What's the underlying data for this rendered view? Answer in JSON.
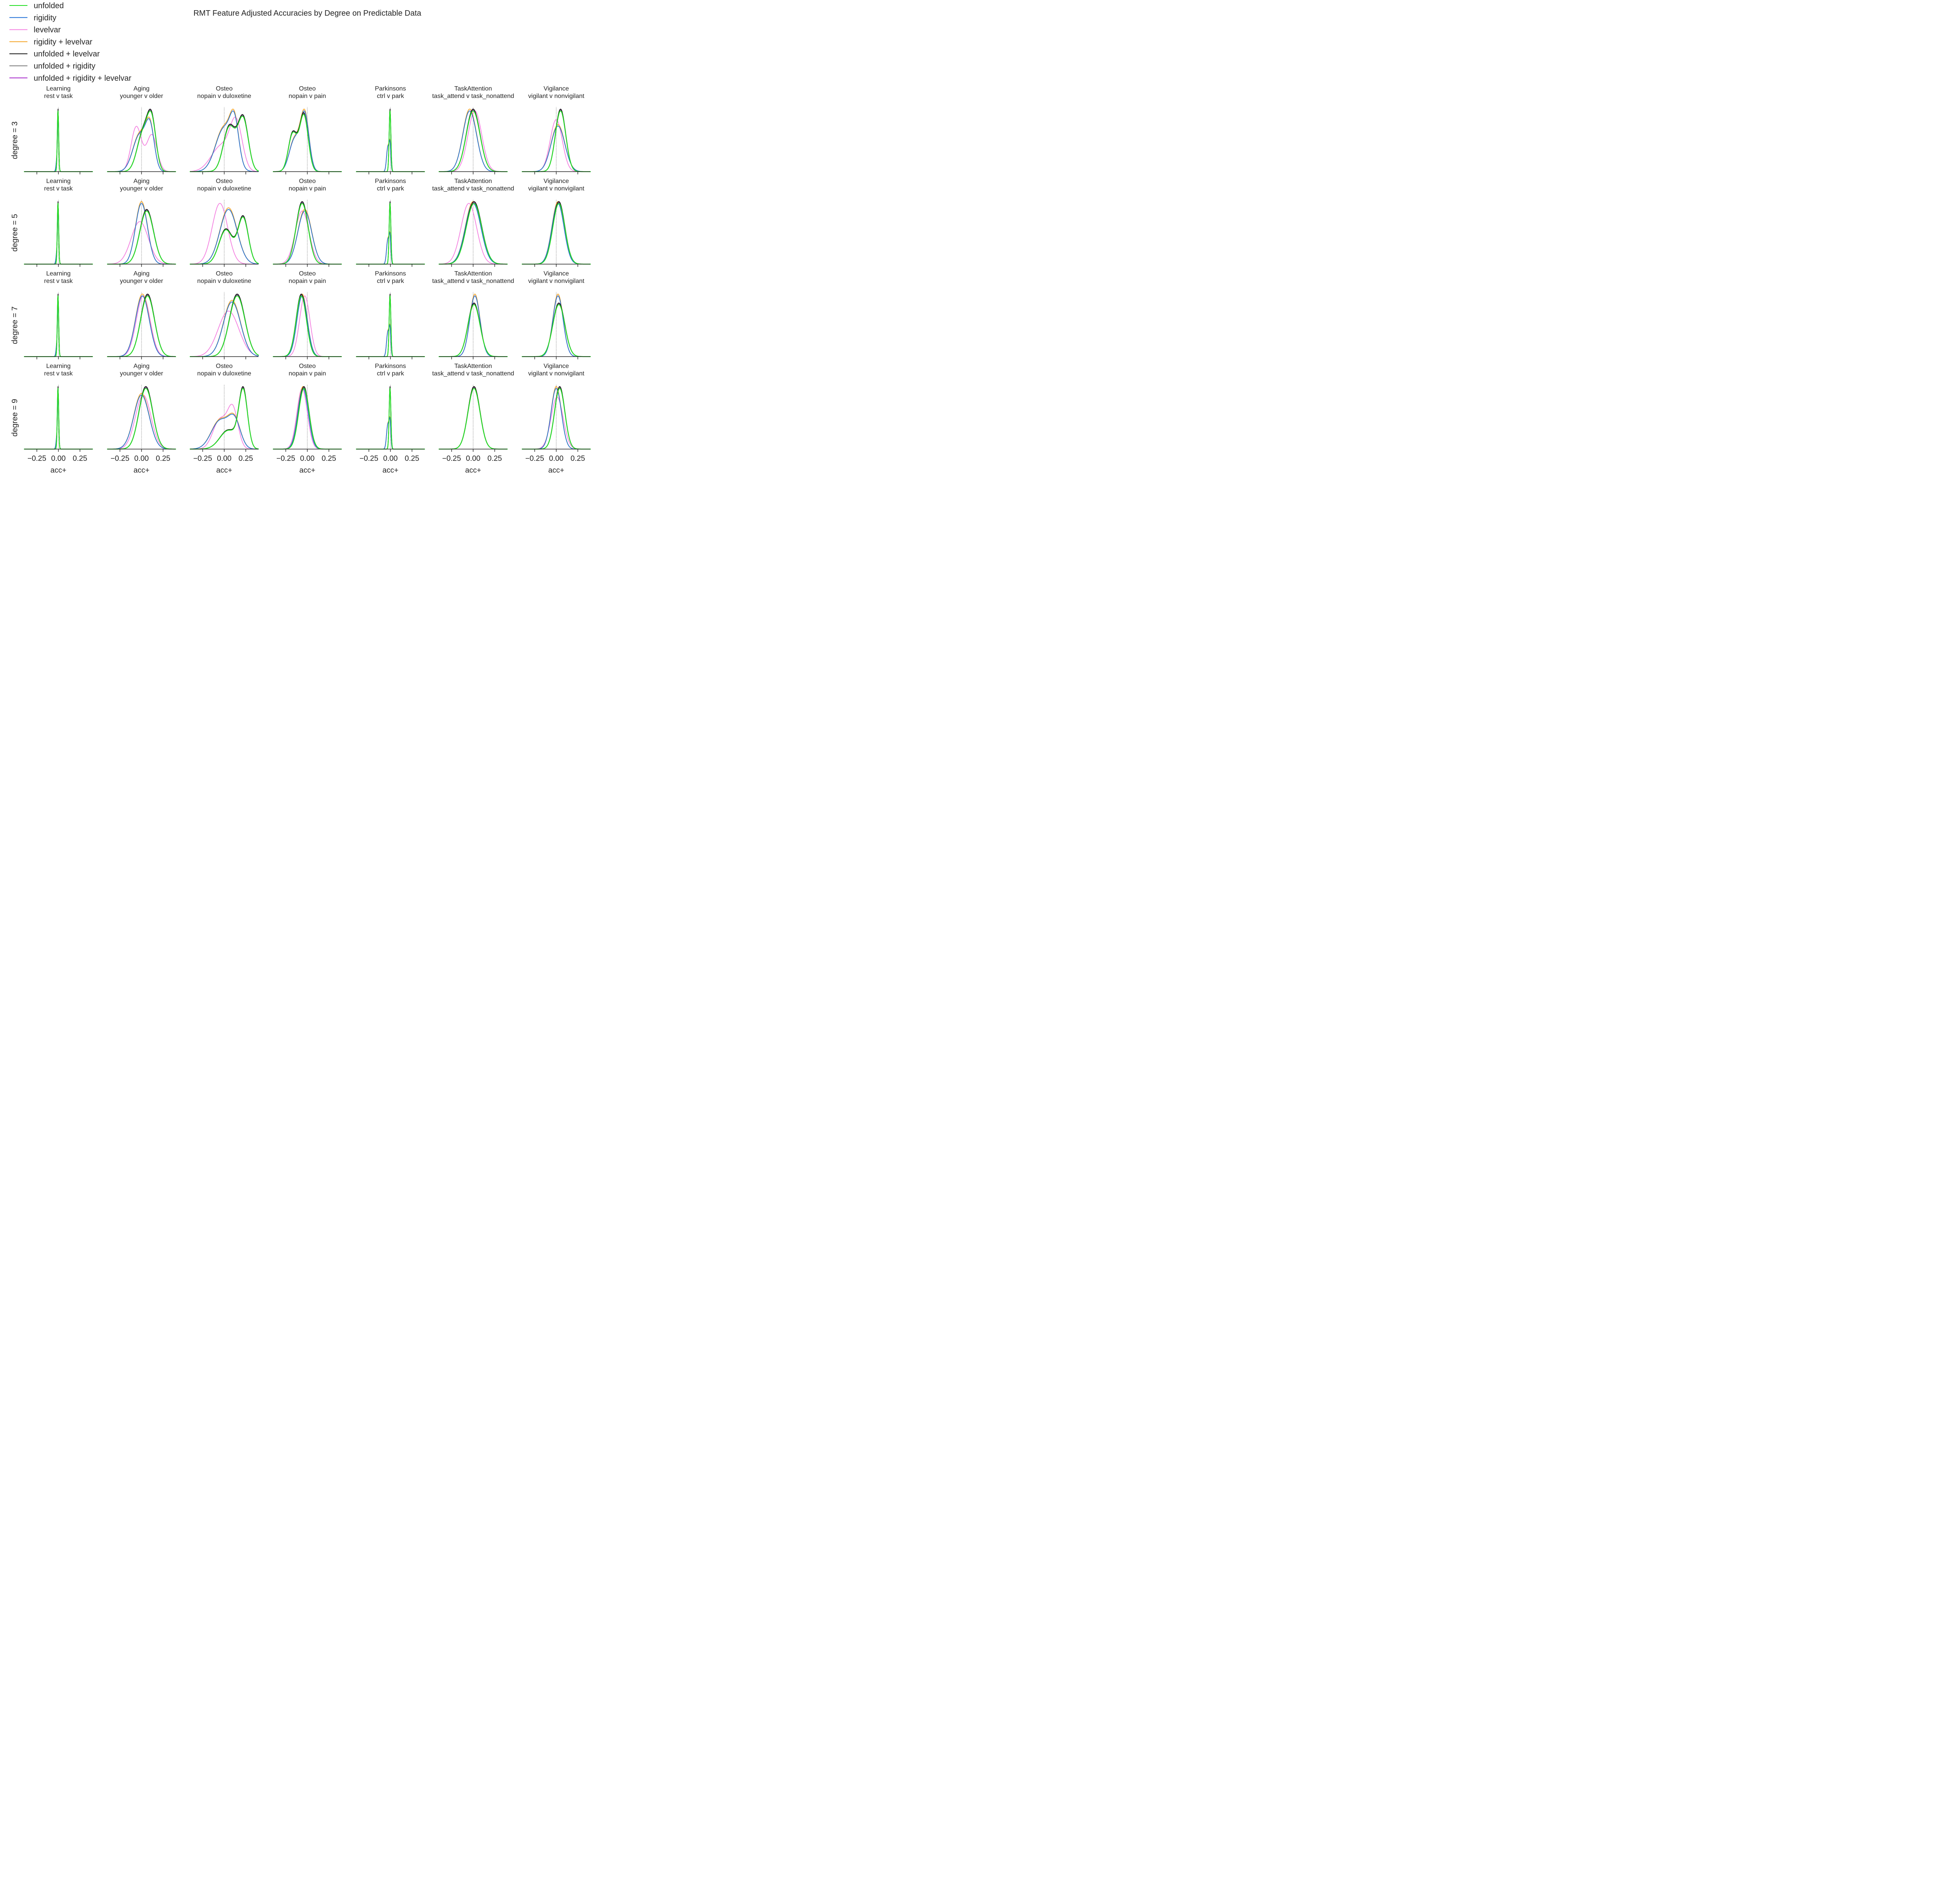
{
  "chart_data": {
    "type": "density",
    "title": "RMT Feature Adjusted Accuracies by Degree on Predictable Data",
    "xlabel": "acc+",
    "xlim": [
      -0.4,
      0.4
    ],
    "xticks": [
      -0.25,
      0.0,
      0.25
    ],
    "xtick_labels": [
      "−0.25",
      "0.00",
      "0.25"
    ],
    "reference_line_x": 0.0,
    "legend_position": "top-left",
    "legend": [
      {
        "name": "unfolded",
        "color": "#22dd22"
      },
      {
        "name": "rigidity",
        "color": "#1f6fd6"
      },
      {
        "name": "levelvar",
        "color": "#f47fe0"
      },
      {
        "name": "rigidity + levelvar",
        "color": "#f4a223"
      },
      {
        "name": "unfolded + levelvar",
        "color": "#111111"
      },
      {
        "name": "unfolded + rigidity",
        "color": "#7a7a7a"
      },
      {
        "name": "unfolded + rigidity + levelvar",
        "color": "#a323c8"
      }
    ],
    "row_labels": [
      "degree = 3",
      "degree = 5",
      "degree = 7",
      "degree = 9"
    ],
    "columns": [
      {
        "dataset": "Learning",
        "comparison": "rest v task"
      },
      {
        "dataset": "Aging",
        "comparison": "younger v older"
      },
      {
        "dataset": "Osteo",
        "comparison": "nopain v duloxetine"
      },
      {
        "dataset": "Osteo",
        "comparison": "nopain v pain"
      },
      {
        "dataset": "Parkinsons",
        "comparison": "ctrl v park"
      },
      {
        "dataset": "TaskAttention",
        "comparison": "task_attend v task_nonattend"
      },
      {
        "dataset": "Vigilance",
        "comparison": "vigilant v nonvigilant"
      }
    ],
    "panels": [
      [
        {
          "groups": {
            "U": [
              [
                -0.005,
                0.008,
                1.0
              ]
            ],
            "R": [
              [
                -0.01,
                0.012,
                0.5
              ],
              [
                -0.002,
                0.006,
                0.5
              ]
            ],
            "L": [
              [
                -0.01,
                0.012,
                0.5
              ],
              [
                -0.002,
                0.006,
                0.5
              ]
            ]
          }
        },
        {
          "groups": {
            "U": [
              [
                0.02,
                0.07,
                0.55
              ],
              [
                0.12,
                0.05,
                0.45
              ]
            ],
            "R": [
              [
                -0.02,
                0.08,
                0.6
              ],
              [
                0.1,
                0.05,
                0.4
              ]
            ],
            "L": [
              [
                -0.06,
                0.06,
                0.55
              ],
              [
                0.12,
                0.06,
                0.45
              ]
            ]
          }
        },
        {
          "groups": {
            "U": [
              [
                0.06,
                0.07,
                0.5
              ],
              [
                0.22,
                0.06,
                0.5
              ]
            ],
            "R": [
              [
                0.0,
                0.1,
                0.7
              ],
              [
                0.12,
                0.05,
                0.3
              ]
            ],
            "L": [
              [
                -0.03,
                0.12,
                0.5
              ],
              [
                0.14,
                0.07,
                0.5
              ]
            ]
          }
        },
        {
          "groups": {
            "U": [
              [
                -0.17,
                0.05,
                0.4
              ],
              [
                -0.04,
                0.05,
                0.6
              ]
            ],
            "R": [
              [
                -0.15,
                0.06,
                0.4
              ],
              [
                -0.03,
                0.05,
                0.6
              ]
            ],
            "L": [
              [
                -0.15,
                0.06,
                0.4
              ],
              [
                -0.03,
                0.05,
                0.6
              ]
            ]
          }
        },
        {
          "groups": {
            "U": [
              [
                -0.005,
                0.01,
                1.0
              ]
            ],
            "R": [
              [
                -0.03,
                0.015,
                0.6
              ],
              [
                -0.005,
                0.01,
                0.4
              ]
            ],
            "L": [
              [
                -0.03,
                0.015,
                0.6
              ],
              [
                -0.005,
                0.01,
                0.4
              ]
            ]
          }
        },
        {
          "groups": {
            "U": [
              [
                0.0,
                0.08,
                1.0
              ]
            ],
            "R": [
              [
                -0.04,
                0.08,
                1.0
              ]
            ],
            "L": [
              [
                0.02,
                0.08,
                1.0
              ]
            ]
          }
        },
        {
          "groups": {
            "U": [
              [
                0.05,
                0.06,
                1.0
              ]
            ],
            "R": [
              [
                0.02,
                0.08,
                1.0
              ]
            ],
            "L": [
              [
                0.0,
                0.07,
                1.0
              ]
            ]
          }
        }
      ],
      [
        {
          "groups": {
            "U": [
              [
                -0.005,
                0.008,
                1.0
              ]
            ],
            "R": [
              [
                -0.01,
                0.012,
                0.5
              ],
              [
                -0.002,
                0.006,
                0.5
              ]
            ],
            "L": [
              [
                -0.01,
                0.012,
                0.5
              ],
              [
                -0.002,
                0.006,
                0.5
              ]
            ]
          }
        },
        {
          "groups": {
            "U": [
              [
                0.06,
                0.08,
                1.0
              ]
            ],
            "R": [
              [
                0.0,
                0.07,
                1.0
              ]
            ],
            "L": [
              [
                -0.02,
                0.1,
                1.0
              ]
            ]
          }
        },
        {
          "groups": {
            "U": [
              [
                0.02,
                0.08,
                0.5
              ],
              [
                0.22,
                0.06,
                0.5
              ]
            ],
            "R": [
              [
                0.05,
                0.1,
                1.0
              ]
            ],
            "L": [
              [
                -0.05,
                0.09,
                1.0
              ]
            ]
          }
        },
        {
          "groups": {
            "U": [
              [
                -0.06,
                0.07,
                1.0
              ]
            ],
            "R": [
              [
                -0.03,
                0.08,
                1.0
              ]
            ],
            "L": [
              [
                -0.06,
                0.08,
                1.0
              ]
            ]
          }
        },
        {
          "groups": {
            "U": [
              [
                -0.005,
                0.01,
                1.0
              ]
            ],
            "R": [
              [
                -0.03,
                0.015,
                0.6
              ],
              [
                -0.005,
                0.01,
                0.4
              ]
            ],
            "L": [
              [
                -0.03,
                0.015,
                0.6
              ],
              [
                -0.005,
                0.01,
                0.4
              ]
            ]
          }
        },
        {
          "groups": {
            "U": [
              [
                0.01,
                0.09,
                1.0
              ]
            ],
            "R": [
              [
                0.0,
                0.09,
                1.0
              ]
            ],
            "L": [
              [
                -0.05,
                0.09,
                1.0
              ]
            ]
          }
        },
        {
          "groups": {
            "U": [
              [
                0.03,
                0.07,
                1.0
              ]
            ],
            "R": [
              [
                0.02,
                0.07,
                1.0
              ]
            ],
            "L": [
              [
                0.03,
                0.07,
                1.0
              ]
            ]
          }
        }
      ],
      [
        {
          "groups": {
            "U": [
              [
                -0.005,
                0.008,
                1.0
              ]
            ],
            "R": [
              [
                -0.01,
                0.012,
                0.5
              ],
              [
                -0.002,
                0.006,
                0.5
              ]
            ],
            "L": [
              [
                -0.01,
                0.012,
                0.5
              ],
              [
                -0.002,
                0.006,
                0.5
              ]
            ]
          }
        },
        {
          "groups": {
            "U": [
              [
                0.07,
                0.08,
                1.0
              ]
            ],
            "R": [
              [
                0.01,
                0.08,
                1.0
              ]
            ],
            "L": [
              [
                0.02,
                0.08,
                1.0
              ]
            ]
          }
        },
        {
          "groups": {
            "U": [
              [
                0.15,
                0.09,
                1.0
              ]
            ],
            "R": [
              [
                0.09,
                0.1,
                1.0
              ]
            ],
            "L": [
              [
                0.05,
                0.12,
                1.0
              ]
            ]
          }
        },
        {
          "groups": {
            "U": [
              [
                -0.07,
                0.06,
                1.0
              ]
            ],
            "R": [
              [
                -0.06,
                0.06,
                1.0
              ]
            ],
            "L": [
              [
                -0.03,
                0.06,
                1.0
              ]
            ]
          }
        },
        {
          "groups": {
            "U": [
              [
                -0.005,
                0.01,
                1.0
              ]
            ],
            "R": [
              [
                -0.03,
                0.015,
                0.6
              ],
              [
                -0.005,
                0.01,
                0.4
              ]
            ],
            "L": [
              [
                -0.03,
                0.015,
                0.6
              ],
              [
                -0.005,
                0.01,
                0.4
              ]
            ]
          }
        },
        {
          "groups": {
            "U": [
              [
                0.01,
                0.07,
                1.0
              ]
            ],
            "R": [
              [
                0.02,
                0.06,
                1.0
              ]
            ],
            "L": [
              [
                0.02,
                0.06,
                1.0
              ]
            ]
          }
        },
        {
          "groups": {
            "U": [
              [
                0.03,
                0.07,
                1.0
              ]
            ],
            "R": [
              [
                0.02,
                0.06,
                1.0
              ]
            ],
            "L": [
              [
                0.02,
                0.06,
                1.0
              ]
            ]
          }
        }
      ],
      [
        {
          "groups": {
            "U": [
              [
                -0.005,
                0.008,
                1.0
              ]
            ],
            "R": [
              [
                -0.01,
                0.012,
                0.5
              ],
              [
                -0.002,
                0.006,
                0.5
              ]
            ],
            "L": [
              [
                -0.01,
                0.012,
                0.5
              ],
              [
                -0.002,
                0.006,
                0.5
              ]
            ]
          }
        },
        {
          "groups": {
            "U": [
              [
                0.05,
                0.08,
                1.0
              ]
            ],
            "R": [
              [
                0.0,
                0.09,
                1.0
              ]
            ],
            "L": [
              [
                0.02,
                0.09,
                1.0
              ]
            ]
          }
        },
        {
          "groups": {
            "U": [
              [
                0.22,
                0.05,
                0.6
              ],
              [
                0.05,
                0.1,
                0.4
              ]
            ],
            "R": [
              [
                -0.05,
                0.1,
                0.6
              ],
              [
                0.12,
                0.07,
                0.4
              ]
            ],
            "L": [
              [
                -0.05,
                0.08,
                0.5
              ],
              [
                0.1,
                0.06,
                0.5
              ]
            ]
          }
        },
        {
          "groups": {
            "U": [
              [
                -0.04,
                0.06,
                1.0
              ]
            ],
            "R": [
              [
                -0.05,
                0.06,
                1.0
              ]
            ],
            "L": [
              [
                -0.06,
                0.06,
                1.0
              ]
            ]
          }
        },
        {
          "groups": {
            "U": [
              [
                -0.005,
                0.01,
                1.0
              ]
            ],
            "R": [
              [
                -0.03,
                0.015,
                0.6
              ],
              [
                -0.005,
                0.01,
                0.4
              ]
            ],
            "L": [
              [
                -0.03,
                0.015,
                0.6
              ],
              [
                -0.005,
                0.01,
                0.4
              ]
            ]
          }
        },
        {
          "groups": {
            "U": [
              [
                0.01,
                0.07,
                1.0
              ]
            ],
            "R": [
              [
                0.01,
                0.07,
                1.0
              ]
            ],
            "L": [
              [
                0.01,
                0.07,
                1.0
              ]
            ]
          }
        },
        {
          "groups": {
            "U": [
              [
                0.04,
                0.06,
                1.0
              ]
            ],
            "R": [
              [
                0.0,
                0.06,
                1.0
              ]
            ],
            "L": [
              [
                0.01,
                0.07,
                1.0
              ]
            ]
          }
        }
      ]
    ]
  }
}
